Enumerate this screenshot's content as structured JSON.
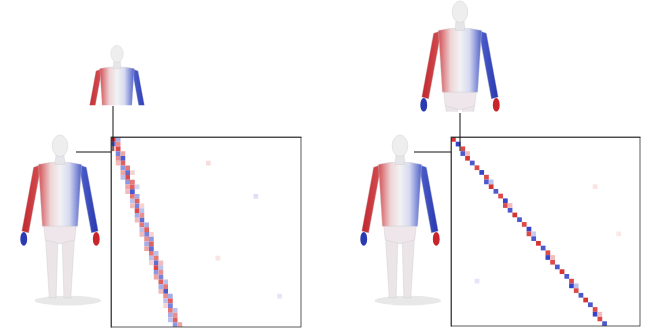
{
  "chart_data": [
    {
      "type": "heatmap",
      "xlim": [
        0,
        40
      ],
      "ylim": [
        0,
        40
      ],
      "zlim": [
        -1,
        1
      ],
      "tick_labels": false,
      "cells": [
        [
          0,
          0,
          0.9
        ],
        [
          0,
          1,
          -0.4
        ],
        [
          1,
          0,
          -0.7
        ],
        [
          1,
          1,
          0.5
        ],
        [
          2,
          1,
          0.8
        ],
        [
          2,
          0,
          0.3
        ],
        [
          3,
          1,
          -0.6
        ],
        [
          3,
          2,
          0.4
        ],
        [
          4,
          1,
          0.5
        ],
        [
          4,
          2,
          -0.8
        ],
        [
          5,
          2,
          0.7
        ],
        [
          5,
          1,
          0.3
        ],
        [
          6,
          2,
          -0.5
        ],
        [
          6,
          3,
          0.6
        ],
        [
          7,
          2,
          0.4
        ],
        [
          7,
          3,
          -0.7
        ],
        [
          7,
          4,
          0.2
        ],
        [
          8,
          3,
          0.8
        ],
        [
          8,
          2,
          -0.3
        ],
        [
          9,
          3,
          -0.5
        ],
        [
          9,
          4,
          0.6
        ],
        [
          10,
          3,
          0.4
        ],
        [
          10,
          4,
          0.7
        ],
        [
          10,
          5,
          -0.2
        ],
        [
          11,
          4,
          -0.8
        ],
        [
          11,
          3,
          0.3
        ],
        [
          12,
          4,
          0.6
        ],
        [
          12,
          5,
          -0.4
        ],
        [
          13,
          4,
          -0.3
        ],
        [
          13,
          5,
          0.7
        ],
        [
          14,
          5,
          -0.6
        ],
        [
          14,
          4,
          0.3
        ],
        [
          14,
          6,
          0.2
        ],
        [
          15,
          5,
          0.8
        ],
        [
          15,
          6,
          -0.3
        ],
        [
          16,
          5,
          -0.4
        ],
        [
          16,
          6,
          0.5
        ],
        [
          17,
          6,
          -0.7
        ],
        [
          17,
          5,
          0.3
        ],
        [
          18,
          6,
          0.6
        ],
        [
          18,
          7,
          -0.4
        ],
        [
          19,
          6,
          -0.3
        ],
        [
          19,
          7,
          0.7
        ],
        [
          20,
          7,
          -0.6
        ],
        [
          20,
          6,
          0.3
        ],
        [
          20,
          8,
          0.2
        ],
        [
          21,
          7,
          0.5
        ],
        [
          21,
          8,
          -0.5
        ],
        [
          22,
          7,
          -0.4
        ],
        [
          22,
          8,
          0.7
        ],
        [
          23,
          8,
          -0.7
        ],
        [
          23,
          7,
          0.4
        ],
        [
          24,
          8,
          0.6
        ],
        [
          24,
          9,
          -0.3
        ],
        [
          25,
          8,
          -0.3
        ],
        [
          25,
          9,
          0.6
        ],
        [
          26,
          9,
          -0.7
        ],
        [
          26,
          8,
          0.2
        ],
        [
          26,
          10,
          0.3
        ],
        [
          27,
          9,
          0.8
        ],
        [
          27,
          10,
          -0.3
        ],
        [
          28,
          9,
          -0.5
        ],
        [
          28,
          10,
          0.5
        ],
        [
          29,
          10,
          -0.6
        ],
        [
          29,
          9,
          0.4
        ],
        [
          30,
          10,
          0.7
        ],
        [
          30,
          11,
          -0.3
        ],
        [
          31,
          10,
          -0.4
        ],
        [
          31,
          11,
          0.6
        ],
        [
          32,
          11,
          -0.8
        ],
        [
          32,
          10,
          0.3
        ],
        [
          33,
          11,
          0.5
        ],
        [
          33,
          12,
          -0.4
        ],
        [
          34,
          11,
          -0.3
        ],
        [
          34,
          12,
          0.7
        ],
        [
          35,
          12,
          -0.6
        ],
        [
          35,
          11,
          0.2
        ],
        [
          36,
          12,
          0.6
        ],
        [
          36,
          13,
          -0.3
        ],
        [
          37,
          12,
          -0.4
        ],
        [
          37,
          13,
          0.5
        ],
        [
          38,
          13,
          0.7
        ],
        [
          38,
          12,
          -0.3
        ],
        [
          39,
          13,
          -0.5
        ],
        [
          39,
          14,
          0.4
        ],
        [
          5,
          20,
          0.15
        ],
        [
          12,
          30,
          -0.15
        ],
        [
          25,
          22,
          0.12
        ],
        [
          33,
          35,
          -0.12
        ]
      ]
    },
    {
      "type": "heatmap",
      "xlim": [
        0,
        40
      ],
      "ylim": [
        0,
        40
      ],
      "zlim": [
        -1,
        1
      ],
      "tick_labels": false,
      "cells": [
        [
          0,
          0,
          0.9
        ],
        [
          1,
          1,
          -0.9
        ],
        [
          2,
          2,
          0.8
        ],
        [
          3,
          2,
          -0.8
        ],
        [
          4,
          3,
          0.9
        ],
        [
          5,
          4,
          -0.8
        ],
        [
          6,
          5,
          0.8
        ],
        [
          7,
          6,
          -0.9
        ],
        [
          8,
          7,
          0.8
        ],
        [
          9,
          7,
          -0.8
        ],
        [
          10,
          8,
          0.9
        ],
        [
          11,
          9,
          -0.8
        ],
        [
          12,
          10,
          0.8
        ],
        [
          13,
          11,
          -0.9
        ],
        [
          14,
          11,
          0.8
        ],
        [
          15,
          12,
          -0.8
        ],
        [
          16,
          13,
          0.9
        ],
        [
          17,
          14,
          -0.8
        ],
        [
          18,
          15,
          0.8
        ],
        [
          19,
          16,
          -0.9
        ],
        [
          20,
          16,
          0.8
        ],
        [
          21,
          17,
          -0.8
        ],
        [
          22,
          18,
          0.9
        ],
        [
          23,
          19,
          -0.8
        ],
        [
          24,
          20,
          0.8
        ],
        [
          25,
          20,
          -0.9
        ],
        [
          26,
          21,
          0.8
        ],
        [
          27,
          22,
          -0.8
        ],
        [
          28,
          23,
          0.9
        ],
        [
          29,
          24,
          -0.8
        ],
        [
          30,
          25,
          0.8
        ],
        [
          31,
          25,
          -0.9
        ],
        [
          32,
          26,
          0.8
        ],
        [
          33,
          27,
          -0.8
        ],
        [
          34,
          28,
          0.9
        ],
        [
          35,
          29,
          -0.8
        ],
        [
          36,
          30,
          0.8
        ],
        [
          37,
          30,
          -0.9
        ],
        [
          38,
          31,
          0.8
        ],
        [
          39,
          32,
          -0.8
        ],
        [
          3,
          3,
          0.3
        ],
        [
          9,
          8,
          -0.3
        ],
        [
          14,
          12,
          0.3
        ],
        [
          20,
          17,
          -0.25
        ],
        [
          25,
          21,
          0.3
        ],
        [
          31,
          26,
          -0.3
        ],
        [
          37,
          31,
          0.3
        ],
        [
          10,
          30,
          0.12
        ],
        [
          30,
          5,
          -0.12
        ],
        [
          20,
          35,
          0.1
        ]
      ]
    }
  ]
}
